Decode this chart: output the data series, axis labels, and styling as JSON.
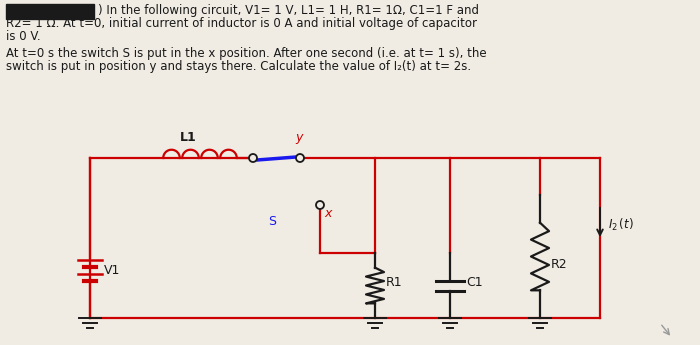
{
  "bg_color": "#f0ece4",
  "text_color": "#1a1a1a",
  "circuit_color_red": "#cc0000",
  "circuit_color_blue": "#1a1aee",
  "circuit_color_dark": "#1a1a1a",
  "line1": ") In the following circuit, V1= 1 V, L1= 1 H, R1= 1Ω, C1=1 F and",
  "line2": "R2= 1 Ω. At t=0, initial current of inductor is 0 A and initial voltage of capacitor",
  "line3": "is 0 V.",
  "line4": "At t=0 s the switch S is put in the x position. After one second (i.e. at t= 1 s), the",
  "line5": "switch is put in position y and stays there. Calculate the value of I₂(t) at t= 2s."
}
